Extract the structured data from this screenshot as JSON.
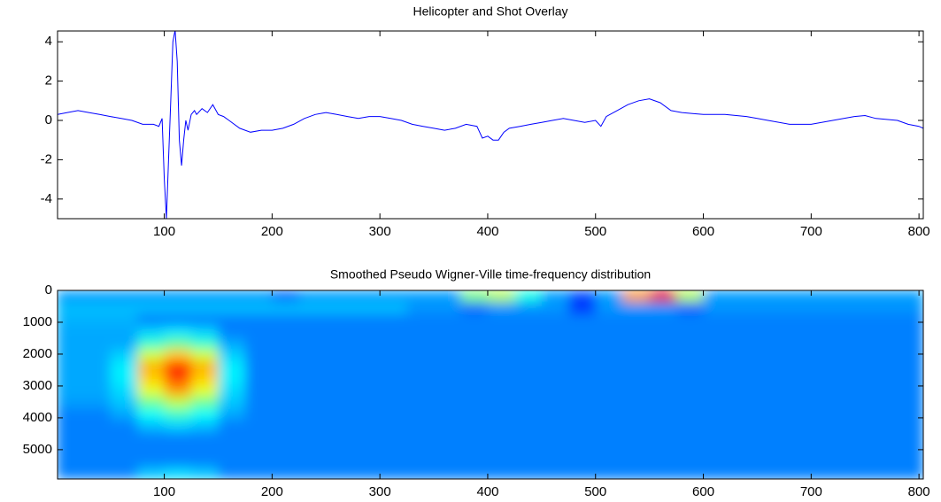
{
  "chart_data": [
    {
      "type": "line",
      "title": "Helicopter and Shot Overlay",
      "color": "#0000ff",
      "x": [
        1,
        10,
        20,
        30,
        40,
        50,
        60,
        70,
        80,
        90,
        95,
        98,
        100,
        102,
        104,
        106,
        108,
        110,
        112,
        114,
        116,
        118,
        120,
        122,
        125,
        128,
        130,
        135,
        140,
        145,
        150,
        155,
        160,
        170,
        180,
        190,
        200,
        210,
        220,
        230,
        240,
        250,
        260,
        270,
        280,
        290,
        300,
        310,
        320,
        330,
        340,
        350,
        360,
        370,
        380,
        390,
        395,
        400,
        405,
        410,
        415,
        420,
        430,
        440,
        450,
        460,
        470,
        480,
        490,
        500,
        505,
        510,
        520,
        530,
        540,
        550,
        560,
        570,
        580,
        590,
        600,
        620,
        640,
        650,
        660,
        680,
        700,
        720,
        740,
        750,
        760,
        780,
        790,
        800,
        804
      ],
      "values": [
        0.3,
        0.4,
        0.5,
        0.4,
        0.3,
        0.2,
        0.1,
        0.0,
        -0.2,
        -0.2,
        -0.3,
        0.1,
        -3,
        -5,
        -2,
        1,
        4,
        4.6,
        3,
        -1,
        -2.3,
        -1,
        0,
        -0.5,
        0.3,
        0.5,
        0.3,
        0.6,
        0.4,
        0.8,
        0.3,
        0.2,
        0,
        -0.4,
        -0.6,
        -0.5,
        -0.5,
        -0.4,
        -0.2,
        0.1,
        0.3,
        0.4,
        0.3,
        0.2,
        0.1,
        0.2,
        0.2,
        0.1,
        0.0,
        -0.2,
        -0.3,
        -0.4,
        -0.5,
        -0.4,
        -0.2,
        -0.3,
        -0.9,
        -0.8,
        -1.0,
        -1.0,
        -0.6,
        -0.4,
        -0.3,
        -0.2,
        -0.1,
        0.0,
        0.1,
        0.0,
        -0.1,
        0.0,
        -0.3,
        0.2,
        0.5,
        0.8,
        1.0,
        1.1,
        0.9,
        0.5,
        0.4,
        0.35,
        0.3,
        0.3,
        0.2,
        0.1,
        0.0,
        -0.2,
        -0.2,
        0.0,
        0.2,
        0.25,
        0.1,
        0.0,
        -0.2,
        -0.3,
        -0.4
      ],
      "xlim": [
        1,
        804
      ],
      "xticks": [
        100,
        200,
        300,
        400,
        500,
        600,
        700,
        800
      ],
      "ylim": [
        -5,
        4.55
      ],
      "yticks": [
        -4,
        -2,
        0,
        2,
        4
      ]
    },
    {
      "type": "heatmap",
      "title": "Smoothed Pseudo Wigner-Ville time-frequency distribution",
      "colormap": "jet",
      "y_reversed": true,
      "xbins": [
        0,
        25,
        50,
        75,
        100,
        125,
        150,
        175,
        200,
        225,
        250,
        275,
        300,
        325,
        350,
        375,
        400,
        425,
        450,
        475,
        500,
        525,
        550,
        575,
        600,
        625,
        650,
        675,
        700,
        725,
        750,
        775,
        804
      ],
      "ybins": [
        0,
        370,
        740,
        1110,
        1480,
        1850,
        2220,
        2590,
        2960,
        3330,
        3700,
        4070,
        4440,
        4810,
        5180,
        5550,
        5920
      ],
      "values": [
        [
          0.28,
          0.28,
          0.28,
          0.28,
          0.28,
          0.28,
          0.28,
          0.28,
          0.23,
          0.28,
          0.28,
          0.28,
          0.28,
          0.28,
          0.28,
          0.5,
          0.55,
          0.4,
          0.28,
          0.2,
          0.28,
          0.72,
          0.9,
          0.55,
          0.28,
          0.28,
          0.28,
          0.28,
          0.28,
          0.28,
          0.28,
          0.28
        ],
        [
          0.31,
          0.31,
          0.31,
          0.31,
          0.31,
          0.31,
          0.31,
          0.31,
          0.31,
          0.31,
          0.31,
          0.31,
          0.31,
          0.27,
          0.27,
          0.23,
          0.27,
          0.27,
          0.27,
          0.17,
          0.27,
          0.27,
          0.27,
          0.22,
          0.27,
          0.27,
          0.27,
          0.27,
          0.27,
          0.27,
          0.27,
          0.27
        ],
        [
          0.3,
          0.3,
          0.3,
          0.25,
          0.25,
          0.25,
          0.25,
          0.25,
          0.25,
          0.25,
          0.25,
          0.25,
          0.25,
          0.25,
          0.25,
          0.25,
          0.25,
          0.25,
          0.25,
          0.25,
          0.25,
          0.25,
          0.25,
          0.25,
          0.25,
          0.25,
          0.25,
          0.25,
          0.25,
          0.25,
          0.25,
          0.25
        ],
        [
          0.29,
          0.29,
          0.29,
          0.33,
          0.35,
          0.33,
          0.25,
          0.25,
          0.25,
          0.25,
          0.25,
          0.25,
          0.25,
          0.25,
          0.25,
          0.25,
          0.25,
          0.25,
          0.25,
          0.25,
          0.25,
          0.25,
          0.25,
          0.25,
          0.25,
          0.25,
          0.25,
          0.25,
          0.25,
          0.25,
          0.25,
          0.25
        ],
        [
          0.29,
          0.29,
          0.29,
          0.42,
          0.47,
          0.42,
          0.29,
          0.25,
          0.25,
          0.25,
          0.25,
          0.25,
          0.25,
          0.25,
          0.25,
          0.25,
          0.25,
          0.25,
          0.25,
          0.25,
          0.25,
          0.25,
          0.25,
          0.25,
          0.25,
          0.25,
          0.25,
          0.25,
          0.25,
          0.25,
          0.25,
          0.25
        ],
        [
          0.29,
          0.29,
          0.33,
          0.58,
          0.68,
          0.58,
          0.33,
          0.25,
          0.25,
          0.25,
          0.25,
          0.25,
          0.25,
          0.25,
          0.25,
          0.25,
          0.25,
          0.25,
          0.25,
          0.25,
          0.25,
          0.25,
          0.25,
          0.25,
          0.25,
          0.25,
          0.25,
          0.25,
          0.25,
          0.25,
          0.25,
          0.25
        ],
        [
          0.29,
          0.29,
          0.36,
          0.7,
          0.85,
          0.7,
          0.36,
          0.25,
          0.25,
          0.25,
          0.25,
          0.25,
          0.25,
          0.25,
          0.25,
          0.25,
          0.25,
          0.25,
          0.25,
          0.25,
          0.25,
          0.25,
          0.25,
          0.25,
          0.25,
          0.25,
          0.25,
          0.25,
          0.25,
          0.25,
          0.25,
          0.25
        ],
        [
          0.29,
          0.29,
          0.36,
          0.67,
          0.8,
          0.67,
          0.36,
          0.25,
          0.25,
          0.25,
          0.25,
          0.25,
          0.25,
          0.25,
          0.25,
          0.25,
          0.25,
          0.25,
          0.25,
          0.25,
          0.25,
          0.25,
          0.25,
          0.25,
          0.25,
          0.25,
          0.25,
          0.25,
          0.25,
          0.25,
          0.25,
          0.25
        ],
        [
          0.29,
          0.29,
          0.34,
          0.6,
          0.72,
          0.6,
          0.34,
          0.25,
          0.25,
          0.25,
          0.25,
          0.25,
          0.25,
          0.25,
          0.25,
          0.25,
          0.25,
          0.25,
          0.25,
          0.25,
          0.25,
          0.25,
          0.25,
          0.25,
          0.25,
          0.25,
          0.25,
          0.25,
          0.25,
          0.25,
          0.25,
          0.25
        ],
        [
          0.28,
          0.28,
          0.32,
          0.48,
          0.56,
          0.48,
          0.32,
          0.25,
          0.25,
          0.25,
          0.25,
          0.25,
          0.25,
          0.25,
          0.25,
          0.25,
          0.25,
          0.25,
          0.25,
          0.25,
          0.25,
          0.25,
          0.25,
          0.25,
          0.25,
          0.25,
          0.25,
          0.25,
          0.25,
          0.25,
          0.25,
          0.25
        ],
        [
          0.25,
          0.25,
          0.29,
          0.38,
          0.43,
          0.38,
          0.29,
          0.25,
          0.25,
          0.25,
          0.25,
          0.25,
          0.25,
          0.25,
          0.25,
          0.25,
          0.25,
          0.25,
          0.25,
          0.25,
          0.25,
          0.25,
          0.25,
          0.25,
          0.25,
          0.25,
          0.25,
          0.25,
          0.25,
          0.25,
          0.25,
          0.25
        ],
        [
          0.25,
          0.25,
          0.25,
          0.31,
          0.33,
          0.31,
          0.25,
          0.25,
          0.25,
          0.25,
          0.25,
          0.25,
          0.25,
          0.25,
          0.25,
          0.25,
          0.25,
          0.25,
          0.25,
          0.25,
          0.25,
          0.25,
          0.25,
          0.25,
          0.25,
          0.25,
          0.25,
          0.25,
          0.25,
          0.25,
          0.25,
          0.25
        ],
        [
          0.25,
          0.25,
          0.25,
          0.25,
          0.25,
          0.25,
          0.25,
          0.25,
          0.25,
          0.25,
          0.25,
          0.25,
          0.25,
          0.25,
          0.25,
          0.25,
          0.25,
          0.25,
          0.25,
          0.25,
          0.25,
          0.25,
          0.25,
          0.25,
          0.25,
          0.25,
          0.25,
          0.25,
          0.25,
          0.25,
          0.25,
          0.25
        ],
        [
          0.25,
          0.25,
          0.25,
          0.25,
          0.25,
          0.25,
          0.25,
          0.25,
          0.25,
          0.25,
          0.25,
          0.25,
          0.25,
          0.25,
          0.25,
          0.25,
          0.25,
          0.25,
          0.25,
          0.25,
          0.25,
          0.25,
          0.25,
          0.25,
          0.25,
          0.25,
          0.25,
          0.25,
          0.25,
          0.25,
          0.25,
          0.25
        ],
        [
          0.25,
          0.25,
          0.25,
          0.25,
          0.25,
          0.25,
          0.25,
          0.25,
          0.25,
          0.25,
          0.25,
          0.25,
          0.25,
          0.25,
          0.25,
          0.25,
          0.25,
          0.25,
          0.25,
          0.25,
          0.25,
          0.25,
          0.25,
          0.25,
          0.25,
          0.25,
          0.25,
          0.25,
          0.25,
          0.25,
          0.25,
          0.25
        ],
        [
          0.25,
          0.25,
          0.25,
          0.32,
          0.34,
          0.32,
          0.25,
          0.25,
          0.25,
          0.25,
          0.25,
          0.25,
          0.25,
          0.25,
          0.25,
          0.25,
          0.25,
          0.25,
          0.25,
          0.25,
          0.25,
          0.25,
          0.25,
          0.25,
          0.25,
          0.25,
          0.25,
          0.25,
          0.25,
          0.25,
          0.25,
          0.25
        ]
      ],
      "xlim": [
        1,
        804
      ],
      "xticks": [
        100,
        200,
        300,
        400,
        500,
        600,
        700,
        800
      ],
      "ylim": [
        0,
        5920
      ],
      "yticks": [
        0,
        1000,
        2000,
        3000,
        4000,
        5000
      ]
    }
  ]
}
